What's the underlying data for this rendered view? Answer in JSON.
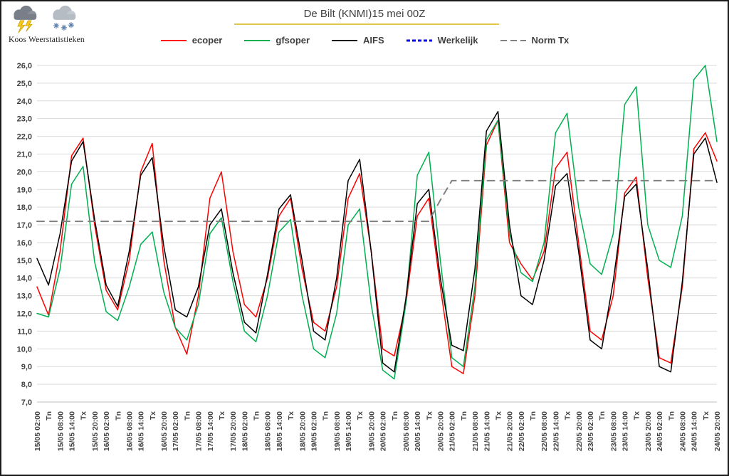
{
  "branding": {
    "name": "Koos Weerstatistieken"
  },
  "chart_data": {
    "type": "line",
    "title": "De Bilt (KNMI)15 mei 00Z",
    "xlabel": "",
    "ylabel": "",
    "ylim": [
      7.0,
      26.0
    ],
    "ytick_step": 1.0,
    "decimal_separator": ",",
    "grid": "horizontal",
    "legend_position": "top",
    "ytick_labels": [
      "7,0",
      "8,0",
      "9,0",
      "10,0",
      "11,0",
      "12,0",
      "13,0",
      "14,0",
      "15,0",
      "16,0",
      "17,0",
      "18,0",
      "19,0",
      "20,0",
      "21,0",
      "22,0",
      "23,0",
      "24,0",
      "25,0",
      "26,0"
    ],
    "x_labels": [
      "15/05 02:00",
      "Tn",
      "15/05 08:00",
      "15/05 14:00",
      "Tx",
      "15/05 20:00",
      "16/05 02:00",
      "Tn",
      "16/05 08:00",
      "16/05 14:00",
      "Tx",
      "16/05 20:00",
      "17/05 02:00",
      "Tn",
      "17/05 08:00",
      "17/05 14:00",
      "Tx",
      "17/05 20:00",
      "18/05 02:00",
      "Tn",
      "18/05 08:00",
      "18/05 14:00",
      "Tx",
      "18/05 20:00",
      "19/05 02:00",
      "Tn",
      "19/05 08:00",
      "19/05 14:00",
      "Tx",
      "19/05 20:00",
      "20/05 02:00",
      "Tn",
      "20/05 08:00",
      "20/05 14:00",
      "Tx",
      "20/05 20:00",
      "21/05 02:00",
      "Tn",
      "21/05 08:00",
      "21/05 14:00",
      "Tx",
      "21/05 20:00",
      "22/05 02:00",
      "Tn",
      "22/05 08:00",
      "22/05 14:00",
      "Tx",
      "22/05 20:00",
      "23/05 02:00",
      "Tn",
      "23/05 08:00",
      "23/05 14:00",
      "Tx",
      "23/05 20:00",
      "24/05 02:00",
      "Tn",
      "24/05 08:00",
      "24/05 14:00",
      "Tx",
      "24/05 20:00"
    ],
    "series": [
      {
        "name": "ecoper",
        "color": "#ff0000",
        "style": "solid",
        "width": 1.5,
        "values": [
          13.5,
          11.9,
          15.5,
          20.9,
          21.9,
          17.0,
          13.3,
          12.2,
          15.0,
          20.0,
          21.6,
          15.0,
          11.2,
          9.7,
          13.0,
          18.5,
          20.0,
          15.5,
          12.5,
          11.8,
          14.0,
          17.5,
          18.5,
          14.5,
          11.5,
          11.0,
          13.5,
          18.5,
          19.9,
          15.5,
          10.0,
          9.6,
          12.5,
          17.5,
          18.5,
          13.5,
          9.0,
          8.6,
          13.0,
          21.5,
          22.9,
          16.0,
          14.8,
          13.9,
          15.5,
          20.2,
          21.1,
          16.0,
          11.0,
          10.5,
          13.0,
          18.8,
          19.7,
          14.0,
          9.5,
          9.2,
          13.5,
          21.3,
          22.2,
          20.6
        ]
      },
      {
        "name": "gfsoper",
        "color": "#00b050",
        "style": "solid",
        "width": 1.5,
        "values": [
          12.0,
          11.8,
          14.5,
          19.3,
          20.3,
          14.9,
          12.1,
          11.6,
          13.5,
          15.9,
          16.6,
          13.2,
          11.2,
          10.5,
          12.5,
          16.5,
          17.4,
          13.8,
          11.0,
          10.4,
          13.0,
          16.6,
          17.3,
          13.0,
          10.0,
          9.5,
          12.0,
          17.0,
          17.9,
          12.5,
          8.8,
          8.3,
          12.5,
          19.8,
          21.1,
          15.0,
          9.5,
          9.0,
          13.5,
          21.8,
          22.9,
          16.5,
          14.3,
          13.8,
          16.0,
          22.2,
          23.3,
          18.0,
          14.8,
          14.2,
          16.5,
          23.8,
          24.8,
          17.0,
          15.0,
          14.6,
          17.5,
          25.2,
          26.0,
          21.7
        ]
      },
      {
        "name": "AIFS",
        "color": "#000000",
        "style": "solid",
        "width": 1.5,
        "values": [
          15.1,
          13.6,
          16.5,
          20.6,
          21.7,
          17.3,
          13.6,
          12.4,
          15.5,
          19.8,
          20.8,
          15.8,
          12.2,
          11.8,
          13.5,
          17.0,
          17.9,
          14.3,
          11.5,
          10.9,
          14.2,
          17.9,
          18.7,
          15.0,
          11.0,
          10.5,
          14.0,
          19.5,
          20.7,
          15.5,
          9.2,
          8.7,
          12.8,
          18.2,
          19.0,
          14.0,
          10.2,
          9.9,
          14.5,
          22.3,
          23.4,
          17.0,
          13.0,
          12.5,
          15.0,
          19.2,
          19.9,
          15.5,
          10.5,
          10.0,
          13.8,
          18.6,
          19.3,
          14.5,
          9.0,
          8.7,
          13.8,
          21.0,
          21.9,
          19.4
        ]
      },
      {
        "name": "Werkelijk",
        "color": "#0000ff",
        "style": "dashed",
        "width": 3,
        "values": []
      },
      {
        "name": "Norm Tx",
        "color": "#808080",
        "style": "dashed",
        "width": 2,
        "values": [
          17.2,
          17.2,
          17.2,
          17.2,
          17.2,
          17.2,
          17.2,
          17.2,
          17.2,
          17.2,
          17.2,
          17.2,
          17.2,
          17.2,
          17.2,
          17.2,
          17.2,
          17.2,
          17.2,
          17.2,
          17.2,
          17.2,
          17.2,
          17.2,
          17.2,
          17.2,
          17.2,
          17.2,
          17.2,
          17.2,
          17.2,
          17.2,
          17.2,
          17.2,
          17.2,
          18.4,
          19.5,
          19.5,
          19.5,
          19.5,
          19.5,
          19.5,
          19.5,
          19.5,
          19.5,
          19.5,
          19.5,
          19.5,
          19.5,
          19.5,
          19.5,
          19.5,
          19.5,
          19.5,
          19.5,
          19.5,
          19.5,
          19.5,
          19.5,
          19.5
        ]
      }
    ]
  }
}
